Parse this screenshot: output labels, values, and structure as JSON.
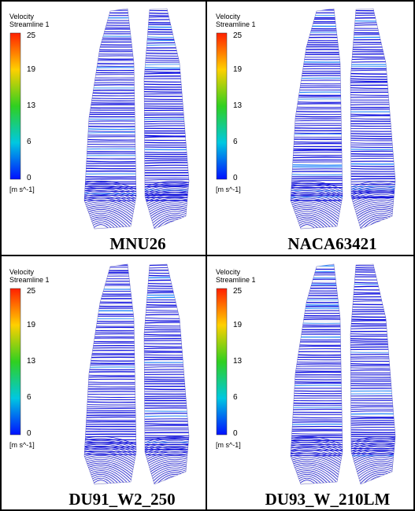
{
  "panels": [
    {
      "legend": {
        "title": "Velocity",
        "subtitle": "Streamline 1",
        "ticks": [
          25,
          19,
          13,
          6,
          0
        ],
        "unit": "[m s^-1]"
      },
      "label": "MNU26"
    },
    {
      "legend": {
        "title": "Velocity",
        "subtitle": "Streamline 1",
        "ticks": [
          25,
          19,
          13,
          6,
          0
        ],
        "unit": "[m s^-1]"
      },
      "label": "NACA63421"
    },
    {
      "legend": {
        "title": "Velocity",
        "subtitle": "Streamline 1",
        "ticks": [
          25,
          19,
          13,
          6,
          0
        ],
        "unit": "[m s^-1]"
      },
      "label": "DU91_W2_250"
    },
    {
      "legend": {
        "title": "Velocity",
        "subtitle": "Streamline 1",
        "ticks": [
          25,
          19,
          13,
          6,
          0
        ],
        "unit": "[m s^-1]"
      },
      "label": "DU93_W_210LM"
    }
  ]
}
